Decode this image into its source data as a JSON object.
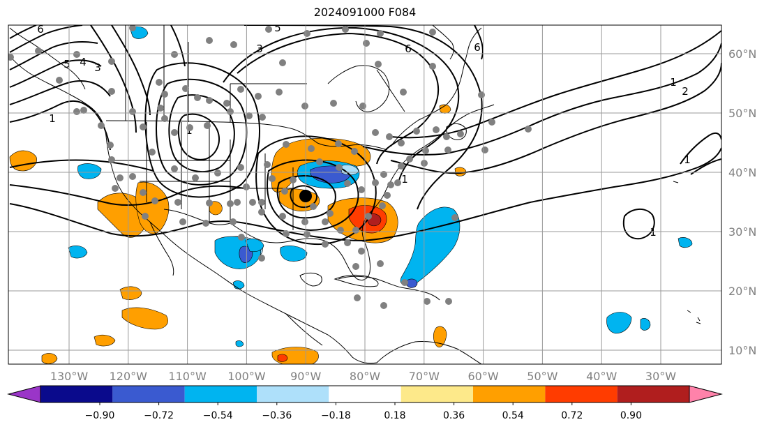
{
  "title": "2024091000 F084",
  "lon_labels": [
    "130°W",
    "120°W",
    "110°W",
    "100°W",
    "90°W",
    "80°W",
    "70°W",
    "60°W",
    "50°W",
    "40°W",
    "30°W"
  ],
  "lon_values": [
    -130,
    -120,
    -110,
    -100,
    -90,
    -80,
    -70,
    -60,
    -50,
    -40,
    -30
  ],
  "lat_labels": [
    "60°N",
    "50°N",
    "40°N",
    "30°N",
    "20°N",
    "10°N"
  ],
  "lat_values": [
    60,
    50,
    40,
    30,
    20,
    10
  ],
  "colorbar": {
    "tick_labels": [
      "−0.90",
      "−0.72",
      "−0.54",
      "−0.36",
      "−0.18",
      "0.18",
      "0.36",
      "0.54",
      "0.72",
      "0.90"
    ],
    "colors": [
      "#9a35c8",
      "#0a0a8c",
      "#3a5ad0",
      "#00b4f0",
      "#aee0fa",
      "#ffffff",
      "#fde98a",
      "#ff9f00",
      "#ff3c00",
      "#b01e1e",
      "#ff82aa"
    ]
  },
  "contour_labels": [
    "6",
    "5",
    "6",
    "3",
    "6",
    "5",
    "4",
    "3",
    "1",
    "1",
    "1",
    "2",
    "1",
    "1",
    "1"
  ]
}
